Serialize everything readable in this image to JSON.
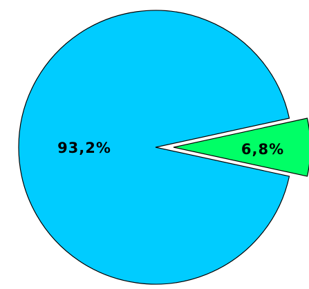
{
  "chart_data": {
    "type": "pie",
    "title": "",
    "slices": [
      {
        "label": "93,2%",
        "value": 93.2,
        "color": "#00CCFF",
        "exploded": false
      },
      {
        "label": "6,8%",
        "value": 6.8,
        "color": "#00FF66",
        "exploded": true
      }
    ],
    "start_angle_deg": -12.25,
    "legend": "none"
  }
}
